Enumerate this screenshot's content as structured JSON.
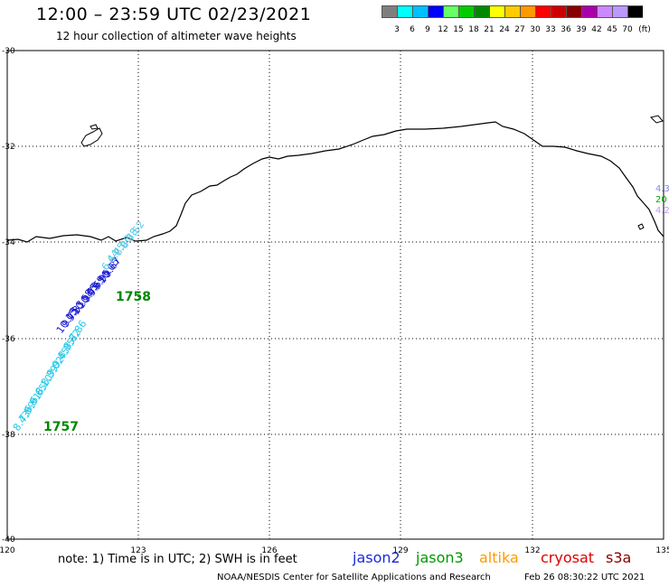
{
  "header": {
    "title": "12:00 – 23:59 UTC 02/23/2021",
    "subtitle": "12 hour collection of altimeter wave heights"
  },
  "colorbar": {
    "colors": [
      "#7f7f7f",
      "#00ffff",
      "#00bfff",
      "#0000ff",
      "#66ff66",
      "#00cc00",
      "#008800",
      "#ffff00",
      "#ffcc00",
      "#ff9900",
      "#ff0000",
      "#cc0000",
      "#880000",
      "#aa00aa",
      "#cc88ff",
      "#bb99ff",
      "#000000"
    ],
    "labels": [
      "3",
      "6",
      "9",
      "12",
      "15",
      "18",
      "21",
      "24",
      "27",
      "30",
      "33",
      "36",
      "39",
      "42",
      "45",
      "70",
      "(ft)"
    ]
  },
  "axes": {
    "lon_ticks": [
      "120",
      "123",
      "126",
      "129",
      "132",
      "135"
    ],
    "lat_ticks": [
      "-30",
      "-32",
      "-34",
      "-36",
      "-38",
      "-40"
    ]
  },
  "passes": [
    {
      "satellite": "jason2",
      "time": "1758",
      "color": "#008800"
    },
    {
      "satellite": "jason3",
      "time": "1757",
      "color": "#008800"
    }
  ],
  "wave_labels": {
    "cyan": [
      "8.43",
      "7.99",
      "6.91",
      "6.65",
      "8.10",
      "8.39",
      "9.02",
      "9.45",
      "8.95",
      "8.62",
      "7.86"
    ],
    "blue": [
      "10.15",
      "9.75",
      "9.33",
      "10.58",
      "10.65",
      "9.79",
      "9.69",
      "9.95",
      "10.05",
      "9.67"
    ],
    "light": [
      "6.44",
      "6.75",
      "8.06",
      "8.38",
      "7.52"
    ],
    "right_edge": [
      "4.3",
      "20",
      "4.2"
    ]
  },
  "footer": {
    "note": "note:  1) Time is in UTC;  2) SWH is in feet",
    "legend": [
      {
        "label": "jason2",
        "color": "#1a2ad6"
      },
      {
        "label": "jason3",
        "color": "#009900"
      },
      {
        "label": "altika",
        "color": "#ff9900"
      },
      {
        "label": "cryosat",
        "color": "#dd0000"
      },
      {
        "label": "s3a",
        "color": "#880000"
      }
    ],
    "credit": "NOAA/NESDIS Center for Satellite Applications and Research",
    "timestamp": "Feb 26 08:30:22 UTC 2021"
  }
}
